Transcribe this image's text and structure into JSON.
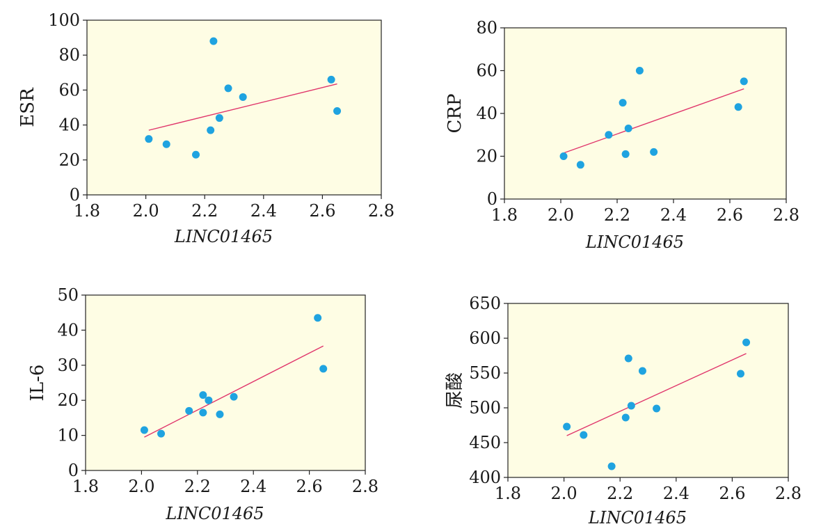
{
  "colors": {
    "point": "#1fa3e0",
    "fit_line": "#e0356b",
    "plot_background": "#fefde4"
  },
  "chart_data": [
    {
      "type": "scatter",
      "xlabel": "LINC01465",
      "ylabel": "ESR",
      "xlim": [
        1.8,
        2.8
      ],
      "ylim": [
        0,
        100
      ],
      "xticks": [
        "1.8",
        "2.0",
        "2.2",
        "2.4",
        "2.6",
        "2.8"
      ],
      "yticks": [
        "0",
        "20",
        "40",
        "60",
        "80",
        "100"
      ],
      "points": [
        {
          "x": 2.01,
          "y": 32
        },
        {
          "x": 2.07,
          "y": 29
        },
        {
          "x": 2.17,
          "y": 23
        },
        {
          "x": 2.22,
          "y": 37
        },
        {
          "x": 2.23,
          "y": 88
        },
        {
          "x": 2.25,
          "y": 44
        },
        {
          "x": 2.28,
          "y": 61
        },
        {
          "x": 2.33,
          "y": 56
        },
        {
          "x": 2.63,
          "y": 66
        },
        {
          "x": 2.65,
          "y": 48
        }
      ],
      "fit_line": [
        {
          "x": 2.01,
          "y": 37
        },
        {
          "x": 2.65,
          "y": 63.5
        }
      ]
    },
    {
      "type": "scatter",
      "xlabel": "LINC01465",
      "ylabel": "CRP",
      "xlim": [
        1.8,
        2.8
      ],
      "ylim": [
        0,
        80
      ],
      "xticks": [
        "1.8",
        "2.0",
        "2.2",
        "2.4",
        "2.6",
        "2.8"
      ],
      "yticks": [
        "0",
        "20",
        "40",
        "60",
        "80"
      ],
      "points": [
        {
          "x": 2.01,
          "y": 20
        },
        {
          "x": 2.07,
          "y": 16
        },
        {
          "x": 2.17,
          "y": 30
        },
        {
          "x": 2.22,
          "y": 45
        },
        {
          "x": 2.23,
          "y": 21
        },
        {
          "x": 2.24,
          "y": 33
        },
        {
          "x": 2.28,
          "y": 60
        },
        {
          "x": 2.33,
          "y": 22
        },
        {
          "x": 2.63,
          "y": 43
        },
        {
          "x": 2.65,
          "y": 55
        }
      ],
      "fit_line": [
        {
          "x": 2.01,
          "y": 21.5
        },
        {
          "x": 2.65,
          "y": 51.5
        }
      ]
    },
    {
      "type": "scatter",
      "xlabel": "LINC01465",
      "ylabel": "IL-6",
      "xlim": [
        1.8,
        2.8
      ],
      "ylim": [
        0,
        50
      ],
      "xticks": [
        "1.8",
        "2.0",
        "2.2",
        "2.4",
        "2.6",
        "2.8"
      ],
      "yticks": [
        "0",
        "10",
        "20",
        "30",
        "40",
        "50"
      ],
      "points": [
        {
          "x": 2.01,
          "y": 11.5
        },
        {
          "x": 2.07,
          "y": 10.5
        },
        {
          "x": 2.17,
          "y": 17
        },
        {
          "x": 2.22,
          "y": 16.5
        },
        {
          "x": 2.22,
          "y": 21.5
        },
        {
          "x": 2.24,
          "y": 20
        },
        {
          "x": 2.28,
          "y": 16
        },
        {
          "x": 2.33,
          "y": 21
        },
        {
          "x": 2.63,
          "y": 43.5
        },
        {
          "x": 2.65,
          "y": 29
        }
      ],
      "fit_line": [
        {
          "x": 2.01,
          "y": 9.5
        },
        {
          "x": 2.65,
          "y": 35.5
        }
      ]
    },
    {
      "type": "scatter",
      "xlabel": "LINC01465",
      "ylabel": "尿酸",
      "xlim": [
        1.8,
        2.8
      ],
      "ylim": [
        400,
        650
      ],
      "xticks": [
        "1.8",
        "2.0",
        "2.2",
        "2.4",
        "2.6",
        "2.8"
      ],
      "yticks": [
        "400",
        "450",
        "500",
        "550",
        "600",
        "650"
      ],
      "points": [
        {
          "x": 2.01,
          "y": 473
        },
        {
          "x": 2.07,
          "y": 461
        },
        {
          "x": 2.17,
          "y": 416
        },
        {
          "x": 2.22,
          "y": 486
        },
        {
          "x": 2.23,
          "y": 571
        },
        {
          "x": 2.24,
          "y": 503
        },
        {
          "x": 2.28,
          "y": 553
        },
        {
          "x": 2.33,
          "y": 499
        },
        {
          "x": 2.63,
          "y": 549
        },
        {
          "x": 2.65,
          "y": 594
        }
      ],
      "fit_line": [
        {
          "x": 2.01,
          "y": 460
        },
        {
          "x": 2.65,
          "y": 578
        }
      ]
    }
  ]
}
